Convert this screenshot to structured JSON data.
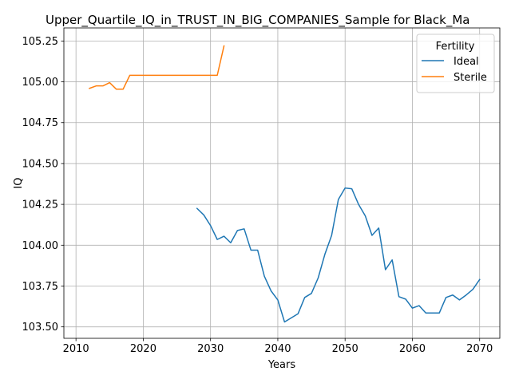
{
  "chart_data": {
    "type": "line",
    "title": "Upper_Quartile_IQ_in_TRUST_IN_BIG_COMPANIES_Sample for Black_Ma",
    "xlabel": "Years",
    "ylabel": "IQ",
    "xlim": [
      2008.2,
      2073.0
    ],
    "ylim": [
      103.43,
      105.33
    ],
    "xticks": [
      2010,
      2020,
      2030,
      2040,
      2050,
      2060,
      2070
    ],
    "yticks": [
      103.5,
      103.75,
      104.0,
      104.25,
      104.5,
      104.75,
      105.0,
      105.25
    ],
    "xtick_labels": [
      "2010",
      "2020",
      "2030",
      "2040",
      "2050",
      "2060",
      "2070"
    ],
    "ytick_labels": [
      "103.50",
      "103.75",
      "104.00",
      "104.25",
      "104.50",
      "104.75",
      "105.00",
      "105.25"
    ],
    "grid": true,
    "legend": {
      "title": "Fertility",
      "placement": "upper right"
    },
    "series": [
      {
        "name": "Ideal",
        "color": "#1f77b4",
        "x": [
          2028,
          2029,
          2030,
          2031,
          2032,
          2033,
          2034,
          2035,
          2036,
          2037,
          2038,
          2039,
          2040,
          2041,
          2042,
          2043,
          2044,
          2045,
          2046,
          2047,
          2048,
          2049,
          2050,
          2051,
          2052,
          2053,
          2054,
          2055,
          2056,
          2057,
          2058,
          2059,
          2060,
          2061,
          2062,
          2063,
          2064,
          2065,
          2066,
          2067,
          2068,
          2069,
          2070
        ],
        "y": [
          104.225,
          104.185,
          104.12,
          104.035,
          104.055,
          104.015,
          104.09,
          104.1,
          103.97,
          103.97,
          103.81,
          103.72,
          103.665,
          103.53,
          103.555,
          103.58,
          103.68,
          103.705,
          103.8,
          103.945,
          104.06,
          104.28,
          104.35,
          104.345,
          104.25,
          104.18,
          104.06,
          104.105,
          103.85,
          103.91,
          103.685,
          103.67,
          103.615,
          103.63,
          103.585,
          103.585,
          103.585,
          103.68,
          103.695,
          103.665,
          103.695,
          103.73,
          103.79
        ]
      },
      {
        "name": "Sterile",
        "color": "#ff7f0e",
        "x": [
          2012,
          2013,
          2014,
          2015,
          2016,
          2017,
          2018,
          2019,
          2020,
          2021,
          2022,
          2023,
          2024,
          2025,
          2026,
          2027,
          2028,
          2029,
          2030,
          2031,
          2032
        ],
        "y": [
          104.96,
          104.975,
          104.975,
          104.995,
          104.955,
          104.955,
          105.04,
          105.04,
          105.04,
          105.04,
          105.04,
          105.04,
          105.04,
          105.04,
          105.04,
          105.04,
          105.04,
          105.04,
          105.04,
          105.04,
          105.22
        ]
      }
    ]
  }
}
